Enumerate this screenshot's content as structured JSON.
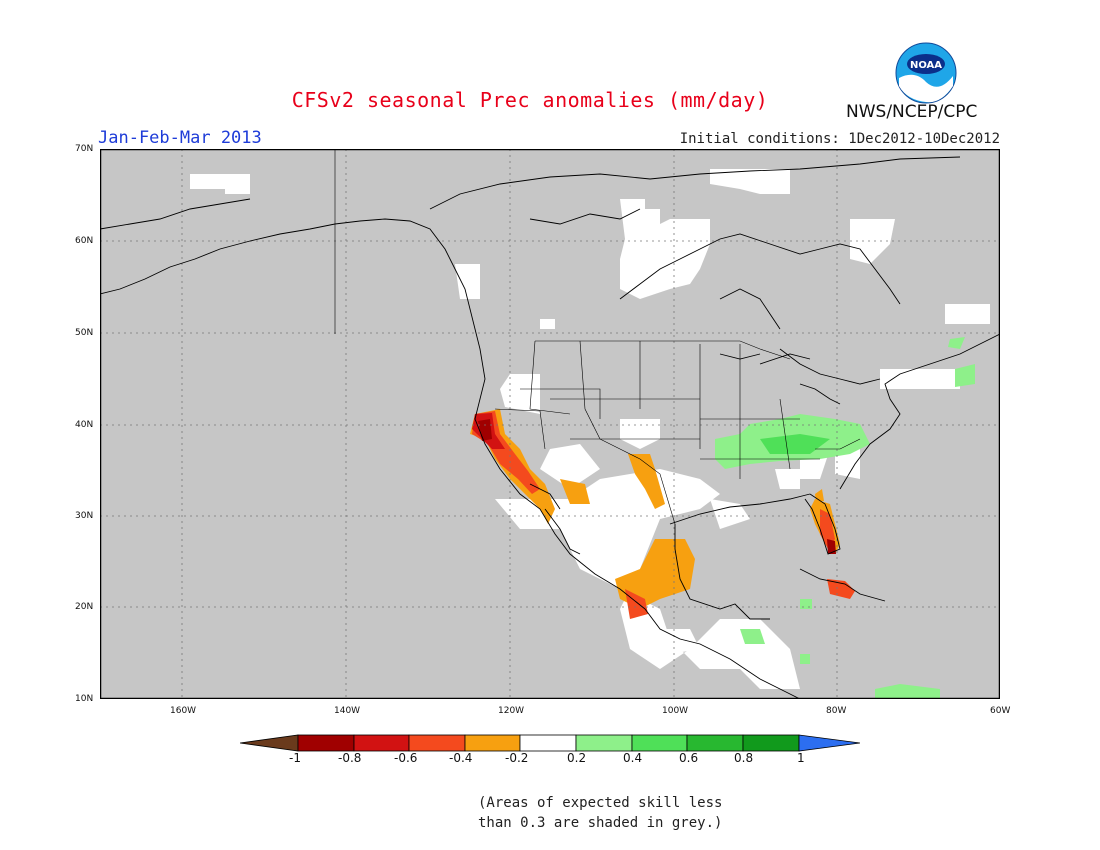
{
  "title": "CFSv2 seasonal Prec anomalies (mm/day)",
  "period": "Jan-Feb-Mar 2013",
  "initial_conditions": "Initial conditions: 1Dec2012-10Dec2012",
  "agency": "NWS/NCEP/CPC",
  "logo_text": "NOAA",
  "note_line1": "(Areas of expected skill less",
  "note_line2": "than 0.3 are shaded in grey.)",
  "lat_labels": [
    "70N",
    "60N",
    "50N",
    "40N",
    "30N",
    "20N",
    "10N"
  ],
  "lon_labels": [
    "160W",
    "140W",
    "120W",
    "100W",
    "80W",
    "60W"
  ],
  "colorbar": {
    "labels": [
      "-1",
      "-0.8",
      "-0.6",
      "-0.4",
      "-0.2",
      "0.2",
      "0.4",
      "0.6",
      "0.8",
      "1"
    ],
    "colors": [
      "#6a3a1c",
      "#a00000",
      "#d21212",
      "#f44a1e",
      "#f7a010",
      "#ffffff",
      "#8ef08a",
      "#4fe058",
      "#28b830",
      "#119a1c",
      "#2c6ef0"
    ]
  },
  "colors": {
    "grey_skill": "#c6c6c6",
    "title_red": "#e8001a",
    "period_blue": "#1e3cd8"
  }
}
